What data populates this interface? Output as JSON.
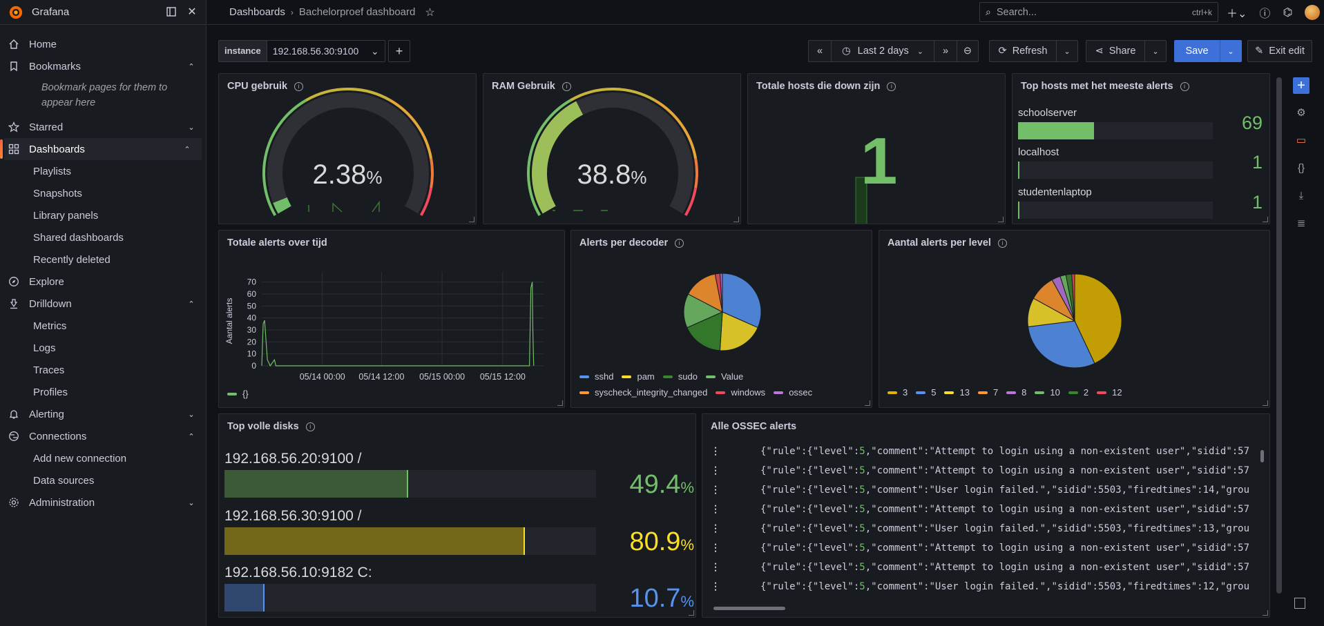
{
  "app": {
    "brand": "Grafana"
  },
  "sidebar": {
    "items": [
      {
        "label": "Home"
      },
      {
        "label": "Bookmarks"
      },
      {
        "label": "Starred"
      },
      {
        "label": "Dashboards"
      },
      {
        "label": "Explore"
      },
      {
        "label": "Drilldown"
      },
      {
        "label": "Alerting"
      },
      {
        "label": "Connections"
      },
      {
        "label": "Administration"
      }
    ],
    "bookmarks_empty": "Bookmark pages for them to appear here",
    "dashboards_sub": [
      "Playlists",
      "Snapshots",
      "Library panels",
      "Shared dashboards",
      "Recently deleted"
    ],
    "drilldown_sub": [
      "Metrics",
      "Logs",
      "Traces",
      "Profiles"
    ],
    "connections_sub": [
      "Add new connection",
      "Data sources"
    ]
  },
  "topbar": {
    "crumb1": "Dashboards",
    "crumb2": "Bachelorproef dashboard",
    "search_placeholder": "Search...",
    "search_shortcut": "ctrl+k"
  },
  "toolbar": {
    "var_label": "instance",
    "var_value": "192.168.56.30:9100",
    "time_range": "Last 2 days",
    "refresh": "Refresh",
    "share": "Share",
    "save": "Save",
    "exit_edit": "Exit edit"
  },
  "panels": {
    "cpu": {
      "title": "CPU gebruik",
      "value": "2.38",
      "unit": "%",
      "fraction": 0.0238
    },
    "ram": {
      "title": "RAM Gebruik",
      "value": "38.8",
      "unit": "%",
      "fraction": 0.388
    },
    "hosts_down": {
      "title": "Totale hosts die down zijn",
      "value": "1"
    },
    "top_hosts": {
      "title": "Top hosts met het meeste alerts",
      "rows": [
        {
          "name": "schoolserver",
          "value": "69",
          "fraction": 0.39
        },
        {
          "name": "localhost",
          "value": "1",
          "fraction": 0.006
        },
        {
          "name": "studentenlaptop",
          "value": "1",
          "fraction": 0.006
        }
      ]
    },
    "alerts_time": {
      "title": "Totale alerts over tijd",
      "ylabel": "Aantal alerts",
      "legend": "{}"
    },
    "decoder": {
      "title": "Alerts per decoder",
      "legend": [
        {
          "name": "sshd",
          "color": "#5794f2"
        },
        {
          "name": "pam",
          "color": "#fade2a"
        },
        {
          "name": "sudo",
          "color": "#37872d"
        },
        {
          "name": "Value",
          "color": "#73bf69"
        },
        {
          "name": "syscheck_integrity_changed",
          "color": "#ff9830"
        },
        {
          "name": "windows",
          "color": "#f2495c"
        },
        {
          "name": "ossec",
          "color": "#b877d9"
        }
      ]
    },
    "level": {
      "title": "Aantal alerts per level",
      "legend": [
        {
          "name": "3",
          "color": "#e0b400"
        },
        {
          "name": "5",
          "color": "#5794f2"
        },
        {
          "name": "13",
          "color": "#fade2a"
        },
        {
          "name": "7",
          "color": "#ff9830"
        },
        {
          "name": "8",
          "color": "#b877d9"
        },
        {
          "name": "10",
          "color": "#73bf69"
        },
        {
          "name": "2",
          "color": "#37872d"
        },
        {
          "name": "12",
          "color": "#f2495c"
        }
      ]
    },
    "disks": {
      "title": "Top volle disks",
      "rows": [
        {
          "name": "192.168.56.20:9100 /",
          "value": "49.4",
          "unit": "%",
          "fraction": 0.494,
          "color": "#73bf69",
          "fill": "#3b5a36"
        },
        {
          "name": "192.168.56.30:9100 /",
          "value": "80.9",
          "unit": "%",
          "fraction": 0.809,
          "color": "#fade2a",
          "fill": "#75671a"
        },
        {
          "name": "192.168.56.10:9182 C:",
          "value": "10.7",
          "unit": "%",
          "fraction": 0.107,
          "color": "#5794f2",
          "fill": "#30476f"
        }
      ]
    },
    "ossec": {
      "title": "Alle OSSEC alerts",
      "rows": [
        {
          "level": "5",
          "comment": "\"Attempt to login using a non-existent user\"",
          "tail": ",\"sidid\":57"
        },
        {
          "level": "5",
          "comment": "\"Attempt to login using a non-existent user\"",
          "tail": ",\"sidid\":57"
        },
        {
          "level": "5",
          "comment": "\"User login failed.\"",
          "tail": ",\"sidid\":5503,\"firedtimes\":14,\"grou"
        },
        {
          "level": "5",
          "comment": "\"Attempt to login using a non-existent user\"",
          "tail": ",\"sidid\":57"
        },
        {
          "level": "5",
          "comment": "\"User login failed.\"",
          "tail": ",\"sidid\":5503,\"firedtimes\":13,\"grou"
        },
        {
          "level": "5",
          "comment": "\"Attempt to login using a non-existent user\"",
          "tail": ",\"sidid\":57"
        },
        {
          "level": "5",
          "comment": "\"Attempt to login using a non-existent user\"",
          "tail": ",\"sidid\":57"
        },
        {
          "level": "5",
          "comment": "\"User login failed.\"",
          "tail": ",\"sidid\":5503,\"firedtimes\":12,\"grou"
        }
      ]
    }
  },
  "chart_data": [
    {
      "type": "line",
      "title": "Totale alerts over tijd",
      "ylabel": "Aantal alerts",
      "xticks": [
        "05/14 00:00",
        "05/14 12:00",
        "05/15 00:00",
        "05/15 12:00"
      ],
      "yticks": [
        0,
        10,
        20,
        30,
        40,
        50,
        60,
        70
      ],
      "ylim": [
        0,
        75
      ],
      "series": [
        {
          "name": "{}",
          "points": [
            [
              0.0,
              0
            ],
            [
              0.005,
              35
            ],
            [
              0.01,
              38
            ],
            [
              0.02,
              5
            ],
            [
              0.03,
              0
            ],
            [
              0.045,
              5
            ],
            [
              0.05,
              0
            ],
            [
              0.95,
              0
            ],
            [
              0.955,
              65
            ],
            [
              0.96,
              70
            ],
            [
              0.962,
              30
            ],
            [
              0.965,
              0
            ]
          ]
        }
      ]
    },
    {
      "type": "pie",
      "title": "Alerts per decoder",
      "slices": [
        {
          "name": "sshd",
          "value": 31,
          "color": "#5794f2"
        },
        {
          "name": "pam",
          "value": 19,
          "color": "#fade2a"
        },
        {
          "name": "sudo",
          "value": 17,
          "color": "#37872d"
        },
        {
          "name": "Value",
          "value": 14,
          "color": "#73bf69"
        },
        {
          "name": "syscheck_integrity_changed",
          "value": 14,
          "color": "#ff9830"
        },
        {
          "name": "windows",
          "value": 2,
          "color": "#f2495c"
        },
        {
          "name": "ossec",
          "value": 1,
          "color": "#b877d9"
        }
      ]
    },
    {
      "type": "pie",
      "title": "Aantal alerts per level",
      "slices": [
        {
          "name": "3",
          "value": 43,
          "color": "#e0b400"
        },
        {
          "name": "5",
          "value": 30,
          "color": "#5794f2"
        },
        {
          "name": "13",
          "value": 10,
          "color": "#fade2a"
        },
        {
          "name": "7",
          "value": 9,
          "color": "#ff9830"
        },
        {
          "name": "8",
          "value": 3,
          "color": "#b877d9"
        },
        {
          "name": "10",
          "value": 2,
          "color": "#73bf69"
        },
        {
          "name": "2",
          "value": 2,
          "color": "#37872d"
        },
        {
          "name": "12",
          "value": 1,
          "color": "#f2495c"
        }
      ]
    }
  ]
}
